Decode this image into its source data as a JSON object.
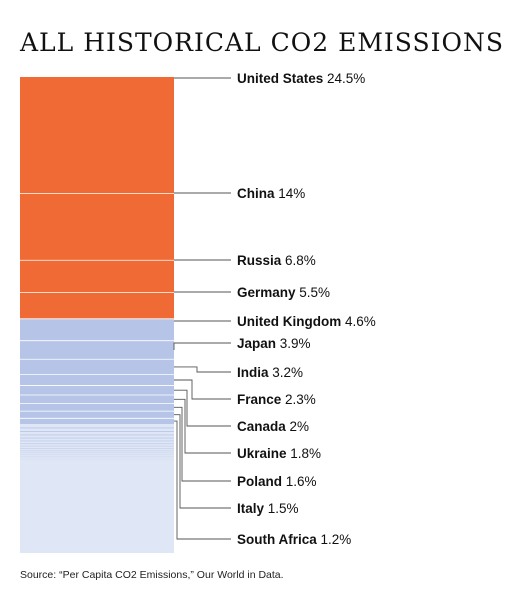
{
  "title": "ALL HISTORICAL CO2 EMISSIONS",
  "source": "Source: “Per Capita CO2 Emissions,” Our World in Data.",
  "colors": {
    "highlight": "#f06a35",
    "blue": "#b6c4e8",
    "rest": "#dfe6f5",
    "divider": "#ffffff",
    "leader": "#555555"
  },
  "chart_data": {
    "type": "bar",
    "categories": [
      "United States",
      "China",
      "Russia",
      "Germany",
      "United Kingdom",
      "Japan",
      "India",
      "France",
      "Canada",
      "Ukraine",
      "Poland",
      "Italy",
      "South Africa"
    ],
    "values": [
      24.5,
      14,
      6.8,
      5.5,
      4.6,
      3.9,
      3.2,
      2.3,
      2,
      1.8,
      1.6,
      1.5,
      1.2
    ],
    "value_labels": [
      "24.5%",
      "14%",
      "6.8%",
      "5.5%",
      "4.6%",
      "3.9%",
      "3.2%",
      "2.3%",
      "2%",
      "1.8%",
      "1.6%",
      "1.5%",
      "1.2%"
    ],
    "highlighted_count": 4,
    "unit": "%",
    "total": 100,
    "title": "ALL HISTORICAL CO2 EMISSIONS"
  }
}
